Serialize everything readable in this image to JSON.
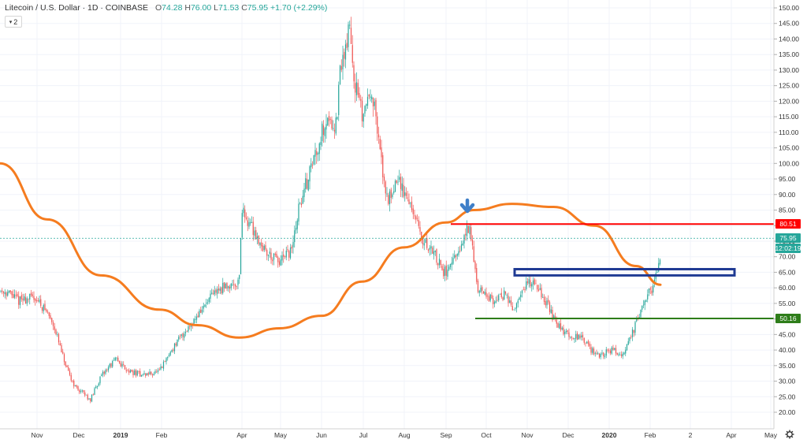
{
  "header": {
    "title": "Litecoin / U.S. Dollar · 1D · COINBASE",
    "open_label": "O",
    "open": "74.28",
    "high_label": "H",
    "high": "76.00",
    "low_label": "L",
    "low": "71.53",
    "close_label": "C",
    "close": "75.95",
    "change": "+1.70 (+2.29%)",
    "indicator_count": "2"
  },
  "price_labels": {
    "red_level": "80.51",
    "current": "75.95",
    "countdown": "12:02:19",
    "green_level": "50.16"
  },
  "colors": {
    "up": "#26a69a",
    "down": "#ef5350",
    "ma": "#f57c1f",
    "resistance": "#ff0000",
    "support": "#2e7d1a",
    "zone": "#1f3a93",
    "arrow": "#3f7fc8",
    "current": "#26a69a"
  },
  "icons": {
    "arrow": "down-arrow-icon",
    "settings": "gear-icon",
    "collapse": "chevron-down-icon"
  },
  "chart_data": {
    "type": "line",
    "title": "Litecoin / U.S. Dollar · 1D · COINBASE",
    "candlestick": true,
    "ylim": [
      16,
      152
    ],
    "y_ticks": [
      20,
      25,
      30,
      35,
      40,
      45,
      50,
      55,
      60,
      65,
      70,
      75,
      80,
      85,
      90,
      95,
      100,
      105,
      110,
      115,
      120,
      125,
      130,
      135,
      140,
      145,
      150
    ],
    "x_ticks": [
      "Nov",
      "Dec",
      "2019",
      "Feb",
      "Apr",
      "May",
      "Jun",
      "Jul",
      "Aug",
      "Sep",
      "Oct",
      "Nov",
      "Dec",
      "2020",
      "Feb",
      "2",
      "Apr",
      "May"
    ],
    "series": [
      {
        "type": "price",
        "x": [
          "2018-10-10",
          "2018-10-20",
          "2018-11-01",
          "2018-11-10",
          "2018-11-15",
          "2018-11-20",
          "2018-11-25",
          "2018-12-01",
          "2018-12-07",
          "2018-12-12",
          "2018-12-18",
          "2018-12-24",
          "2018-12-31",
          "2019-01-10",
          "2019-01-20",
          "2019-02-01",
          "2019-02-10",
          "2019-02-20",
          "2019-03-01",
          "2019-03-15",
          "2019-03-25",
          "2019-04-01",
          "2019-04-03",
          "2019-04-10",
          "2019-04-20",
          "2019-05-01",
          "2019-05-10",
          "2019-05-15",
          "2019-05-25",
          "2019-06-05",
          "2019-06-12",
          "2019-06-15",
          "2019-06-20",
          "2019-06-22",
          "2019-06-25",
          "2019-07-01",
          "2019-07-08",
          "2019-07-16",
          "2019-07-20",
          "2019-07-27",
          "2019-08-05",
          "2019-08-15",
          "2019-08-22",
          "2019-08-31",
          "2019-09-10",
          "2019-09-18",
          "2019-09-22",
          "2019-09-25",
          "2019-10-05",
          "2019-10-15",
          "2019-10-22",
          "2019-10-28",
          "2019-11-05",
          "2019-11-15",
          "2019-11-22",
          "2019-12-01",
          "2019-12-10",
          "2019-12-18",
          "2019-12-25",
          "2020-01-01",
          "2020-01-10",
          "2020-01-18",
          "2020-01-25",
          "2020-02-01",
          "2020-02-07"
        ],
        "close": [
          59,
          56,
          57,
          52,
          48,
          40,
          33,
          28,
          26,
          24,
          30,
          34,
          37,
          33,
          32,
          33,
          40,
          46,
          51,
          59,
          61,
          62,
          85,
          80,
          72,
          68,
          72,
          85,
          100,
          115,
          112,
          130,
          140,
          144,
          128,
          115,
          125,
          98,
          88,
          95,
          88,
          75,
          72,
          65,
          70,
          80,
          69,
          60,
          56,
          58,
          52,
          60,
          63,
          55,
          48,
          45,
          44,
          40,
          38,
          40,
          39,
          46,
          55,
          60,
          70
        ]
      },
      {
        "type": "moving_average",
        "x": [
          "2018-10-06",
          "2018-11-10",
          "2018-12-20",
          "2019-02-01",
          "2019-03-01",
          "2019-04-01",
          "2019-05-01",
          "2019-06-01",
          "2019-07-01",
          "2019-08-01",
          "2019-09-01",
          "2019-09-22",
          "2019-10-20",
          "2019-11-20",
          "2019-12-20",
          "2020-01-20",
          "2020-02-07"
        ],
        "values": [
          100,
          82,
          64,
          53,
          48,
          44,
          47,
          51,
          62,
          73,
          81,
          85,
          87,
          86,
          80,
          67,
          61
        ]
      }
    ],
    "annotations": {
      "resistance_level": 80.51,
      "support_level": 50.16,
      "current_price": 75.95,
      "zone": [
        64,
        66
      ]
    }
  }
}
